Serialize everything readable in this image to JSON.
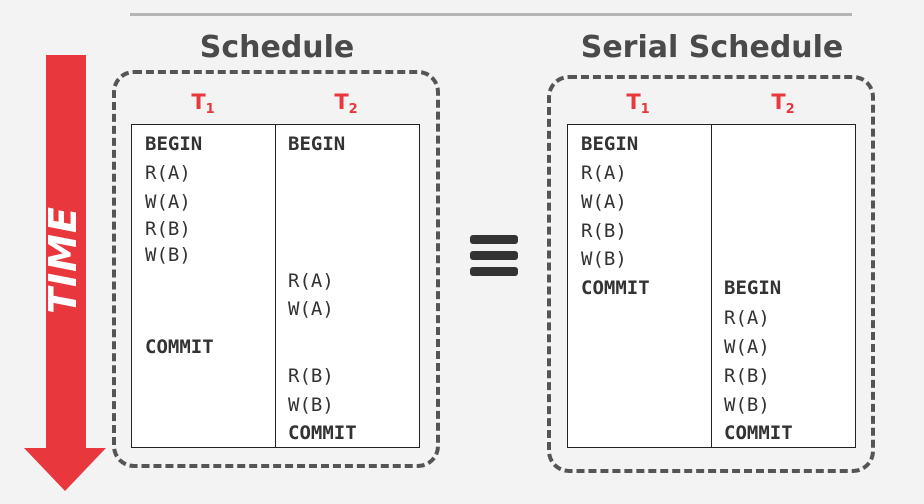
{
  "time_label": "TIME",
  "equivalence_symbol": "≡",
  "colors": {
    "arrow": "#e8383d",
    "thread_label": "#e8383d",
    "text": "#333333",
    "box_border": "#555555"
  },
  "schedule": {
    "title": "Schedule",
    "threads": [
      {
        "name": "T",
        "sub": "1"
      },
      {
        "name": "T",
        "sub": "2"
      }
    ],
    "t1_ops": [
      "BEGIN",
      "R(A)",
      "W(A)",
      "R(B)",
      "W(B)",
      "COMMIT"
    ],
    "t2_ops": [
      "BEGIN",
      "R(A)",
      "W(A)",
      "R(B)",
      "W(B)",
      "COMMIT"
    ]
  },
  "serial_schedule": {
    "title": "Serial Schedule",
    "threads": [
      {
        "name": "T",
        "sub": "1"
      },
      {
        "name": "T",
        "sub": "2"
      }
    ],
    "t1_ops": [
      "BEGIN",
      "R(A)",
      "W(A)",
      "R(B)",
      "W(B)",
      "COMMIT"
    ],
    "t2_ops": [
      "BEGIN",
      "R(A)",
      "W(A)",
      "R(B)",
      "W(B)",
      "COMMIT"
    ]
  }
}
